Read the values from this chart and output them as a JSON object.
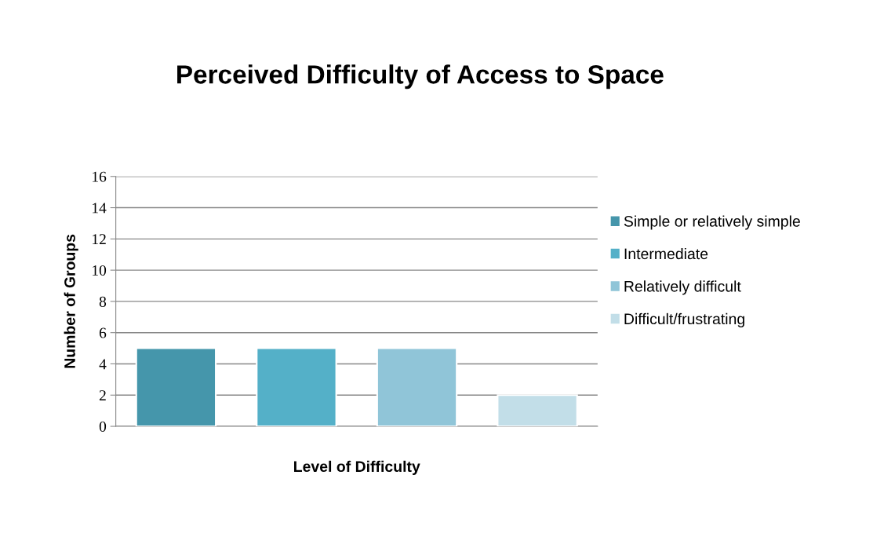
{
  "chart_data": {
    "type": "bar",
    "title": "Perceived Difficulty of Access to Space",
    "xlabel": "Level of Difficulty",
    "ylabel": "Number of Groups",
    "categories": [
      null
    ],
    "series": [
      {
        "name": "Simple or relatively simple",
        "color": "#4596ab",
        "values": [
          5
        ]
      },
      {
        "name": "Intermediate",
        "color": "#54b0c8",
        "values": [
          5
        ]
      },
      {
        "name": "Relatively difficult",
        "color": "#90c5d8",
        "values": [
          5
        ]
      },
      {
        "name": "Difficult/frustrating",
        "color": "#c2dee8",
        "values": [
          2
        ]
      }
    ],
    "ylim": [
      0,
      16
    ],
    "yticks": [
      0,
      2,
      4,
      6,
      8,
      10,
      12,
      14,
      16
    ],
    "grid": "y",
    "legend": "right"
  }
}
